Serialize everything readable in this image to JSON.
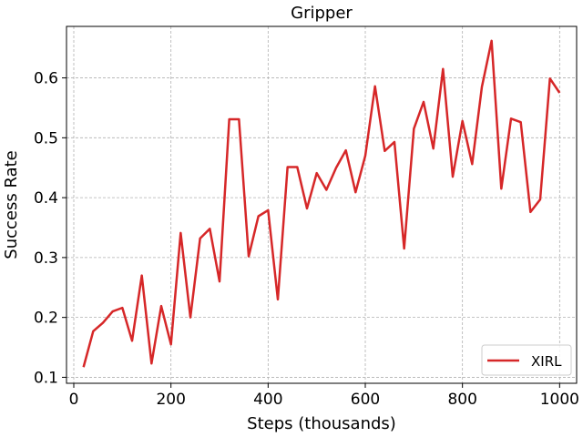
{
  "chart_data": {
    "type": "line",
    "title": "Gripper",
    "xlabel": "Steps (thousands)",
    "ylabel": "Success Rate",
    "xlim": [
      -15,
      1035
    ],
    "ylim": [
      0.09,
      0.686
    ],
    "xticks": [
      0,
      200,
      400,
      600,
      800,
      1000
    ],
    "xtick_labels": [
      "0",
      "200",
      "400",
      "600",
      "800",
      "1000"
    ],
    "yticks": [
      0.1,
      0.2,
      0.3,
      0.4,
      0.5,
      0.6
    ],
    "ytick_labels": [
      "0.1",
      "0.2",
      "0.3",
      "0.4",
      "0.5",
      "0.6"
    ],
    "grid": true,
    "legend": "lower-right",
    "x": [
      20,
      40,
      60,
      80,
      100,
      120,
      140,
      160,
      180,
      200,
      220,
      240,
      260,
      280,
      300,
      320,
      340,
      360,
      380,
      400,
      420,
      440,
      460,
      480,
      500,
      520,
      540,
      560,
      580,
      600,
      620,
      640,
      660,
      680,
      700,
      720,
      740,
      760,
      780,
      800,
      820,
      840,
      860,
      880,
      900,
      920,
      940,
      960,
      980,
      1000
    ],
    "series": [
      {
        "name": "XIRL",
        "color": "#d62728",
        "values": [
          0.117,
          0.177,
          0.191,
          0.21,
          0.216,
          0.161,
          0.27,
          0.123,
          0.219,
          0.155,
          0.341,
          0.2,
          0.332,
          0.348,
          0.26,
          0.531,
          0.531,
          0.302,
          0.369,
          0.379,
          0.23,
          0.451,
          0.451,
          0.382,
          0.441,
          0.413,
          0.45,
          0.479,
          0.409,
          0.47,
          0.586,
          0.478,
          0.493,
          0.315,
          0.515,
          0.56,
          0.482,
          0.615,
          0.435,
          0.528,
          0.456,
          0.585,
          0.662,
          0.415,
          0.532,
          0.526,
          0.376,
          0.397,
          0.599,
          0.575
        ]
      }
    ]
  }
}
